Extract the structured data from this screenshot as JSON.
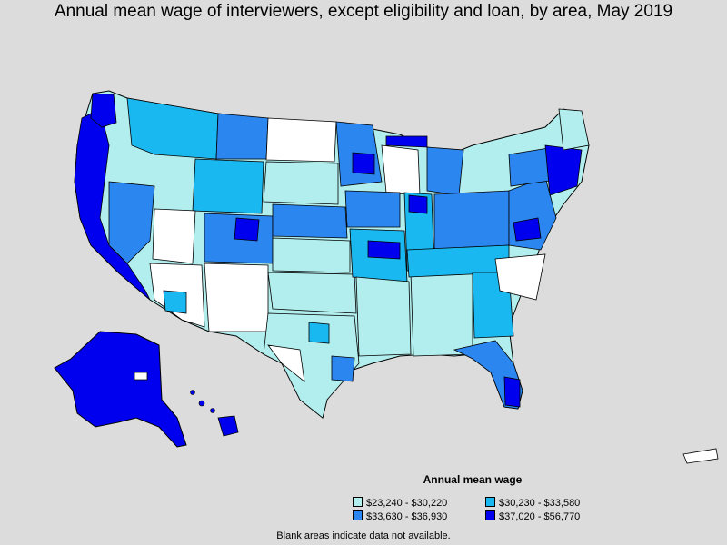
{
  "title": "Annual mean wage of interviewers, except eligibility and loan, by area, May 2019",
  "legend": {
    "title": "Annual mean wage",
    "items": [
      {
        "label": "$23,240 - $30,220",
        "color": "#b2eeee"
      },
      {
        "label": "$30,230 - $33,580",
        "color": "#1ab8f0"
      },
      {
        "label": "$33,630 - $36,930",
        "color": "#2b86f0"
      },
      {
        "label": "$37,020 - $56,770",
        "color": "#0000ee"
      }
    ]
  },
  "footnote": "Blank areas indicate data not available.",
  "colors": {
    "background": "#dcdcdc",
    "no_data": "#ffffff",
    "border": "#000000"
  }
}
